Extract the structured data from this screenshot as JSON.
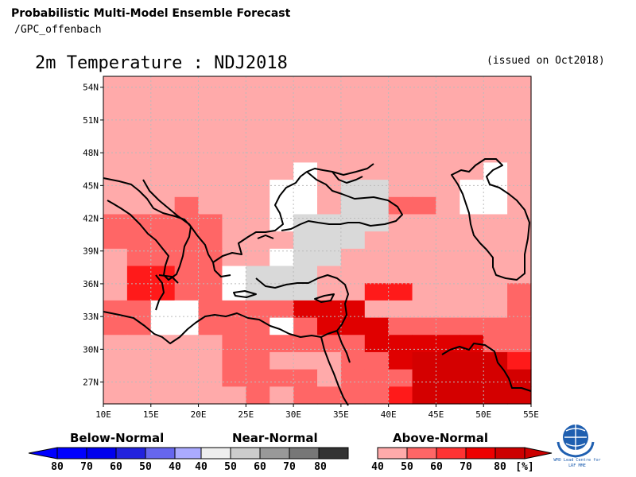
{
  "header": {
    "line1": "Probabilistic Multi-Model Ensemble Forecast",
    "line2": "/GPC_offenbach"
  },
  "map": {
    "title": "2m Temperature : NDJ2018",
    "issued": "(issued on Oct2018)",
    "lat_labels": [
      "54N",
      "51N",
      "48N",
      "45N",
      "42N",
      "39N",
      "36N",
      "33N",
      "30N",
      "27N"
    ],
    "lon_labels": [
      "10E",
      "15E",
      "20E",
      "25E",
      "30E",
      "35E",
      "40E",
      "45E",
      "50E",
      "55E"
    ],
    "extent": {
      "lon_min": 10,
      "lon_max": 55,
      "lat_min": 25,
      "lat_max": 55
    },
    "grid_step_deg": 2.5,
    "palette": {
      "W": "#ffffff",
      "G": "#d9d9d9",
      "A": "#ffaaaa",
      "B": "#ff6666",
      "C": "#ff1a1a",
      "D": "#e00000",
      "E": "#d40000"
    },
    "cells_rows_north_to_south": [
      "AAAAAAAAAAAAAAAAAA",
      "AAAAAAAAAAAAAAAAAA",
      "AAAAAAAAAAAAAAAAAA",
      "AAAAAAAAAAAAAAAAAA",
      "AAAAAAAAAAAAAAAAAA",
      "AAAAAAAAWAAAAAAAWA",
      "AAAAAAAWWAGGAAAWWA",
      "AAABAAAWWAGGBBAWWA",
      "BBBBBAAWGGGGAAAAAA",
      "BBBBBAAAGGGAAAAAAA",
      "ABBBBAAWGGAAAAAAAA",
      "ACCBBWGGGAAAAAAAAA",
      "ACCBBWGGGAACCAAAAB",
      "BBWWBBBBDDDAAAAAAB",
      "BBWWBBBWBDDDBBBBBB",
      "AAAAABBBBBBDDDDDBB",
      "AAAAABBAAABBDEEEEC",
      "AAAAABBBBABBBEEEEE",
      "AAAAAABABBBBCEEEEE"
    ],
    "grid_color": "#bbbbbb",
    "coast_color": "#000000"
  },
  "legend": {
    "below": {
      "title": "Below-Normal",
      "labels": [
        "80",
        "70",
        "60",
        "50",
        "40"
      ],
      "colors": [
        "#0000ff",
        "#0000ee",
        "#2222dd",
        "#6666ee",
        "#aaaaff"
      ]
    },
    "near": {
      "title": "Near-Normal",
      "labels": [
        "40",
        "50",
        "60",
        "70",
        "80"
      ],
      "colors": [
        "#eeeeee",
        "#cccccc",
        "#999999",
        "#777777",
        "#333333"
      ]
    },
    "above": {
      "title": "Above-Normal",
      "labels": [
        "40",
        "50",
        "60",
        "70",
        "80"
      ],
      "colors": [
        "#ffaaaa",
        "#ff6666",
        "#ff3333",
        "#ee0000",
        "#cc0000"
      ]
    },
    "unit": "[%]"
  },
  "logo": {
    "caption_line1": "WMO Lead Centre for",
    "caption_line2": "LRF MME",
    "colors": {
      "globe": "#1f5fb0"
    }
  }
}
